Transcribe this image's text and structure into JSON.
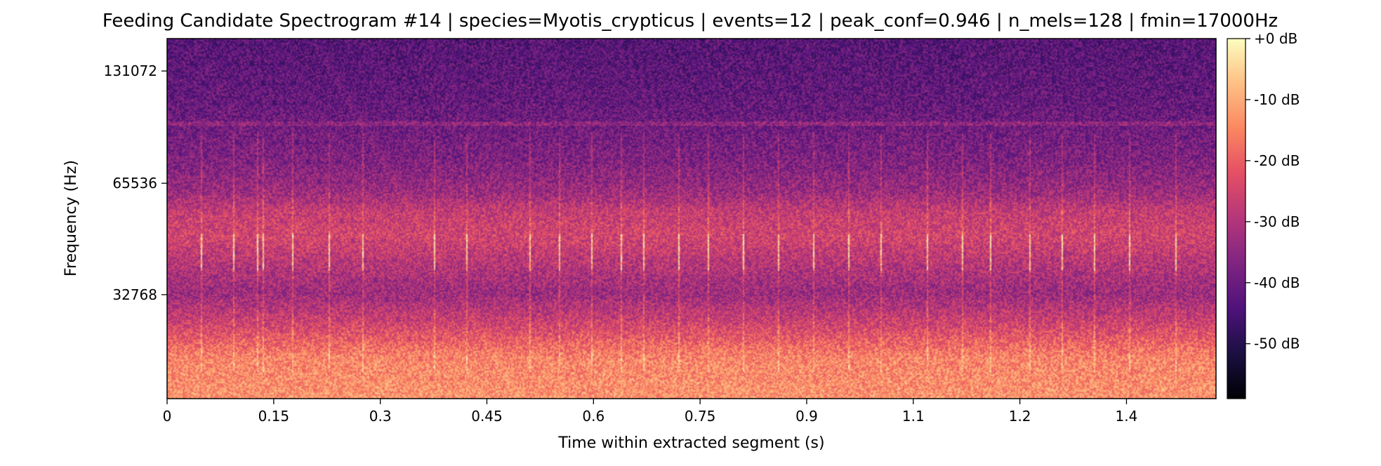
{
  "chart_data": {
    "type": "heatmap",
    "title": "Feeding Candidate Spectrogram #14 | species=Myotis_crypticus | events=12 | peak_conf=0.946 | n_mels=128 | fmin=17000Hz",
    "xlabel": "Time within extracted segment (s)",
    "ylabel": "Frequency (Hz)",
    "xlim": [
      0,
      1.476
    ],
    "y_scale": "mel",
    "ylim": [
      17000,
      160000
    ],
    "x_ticks": [
      {
        "value": 0,
        "label": "0"
      },
      {
        "value": 0.15,
        "label": "0.15"
      },
      {
        "value": 0.3,
        "label": "0.3"
      },
      {
        "value": 0.45,
        "label": "0.45"
      },
      {
        "value": 0.6,
        "label": "0.6"
      },
      {
        "value": 0.75,
        "label": "0.75"
      },
      {
        "value": 0.9,
        "label": "0.9"
      },
      {
        "value": 1.05,
        "label": "1.1"
      },
      {
        "value": 1.2,
        "label": "1.2"
      },
      {
        "value": 1.35,
        "label": "1.4"
      }
    ],
    "y_ticks": [
      {
        "value": 32768,
        "label": "32768"
      },
      {
        "value": 65536,
        "label": "65536"
      },
      {
        "value": 131072,
        "label": "131072"
      }
    ],
    "colormap": "magma",
    "colorbar": {
      "range": [
        -59,
        0
      ],
      "ticks": [
        {
          "value": 0,
          "label": "+0 dB"
        },
        {
          "value": -10,
          "label": "-10 dB"
        },
        {
          "value": -20,
          "label": "-20 dB"
        },
        {
          "value": -30,
          "label": "-30 dB"
        },
        {
          "value": -40,
          "label": "-40 dB"
        },
        {
          "value": -50,
          "label": "-50 dB"
        }
      ]
    },
    "approximate_energy_profile_db": [
      {
        "freq_hz": 17000,
        "db": -13
      },
      {
        "freq_hz": 22000,
        "db": -15
      },
      {
        "freq_hz": 27000,
        "db": -25
      },
      {
        "freq_hz": 33000,
        "db": -33
      },
      {
        "freq_hz": 40000,
        "db": -29
      },
      {
        "freq_hz": 47000,
        "db": -25
      },
      {
        "freq_hz": 55000,
        "db": -27
      },
      {
        "freq_hz": 62000,
        "db": -33
      },
      {
        "freq_hz": 75000,
        "db": -37
      },
      {
        "freq_hz": 90000,
        "db": -39
      },
      {
        "freq_hz": 110000,
        "db": -41
      },
      {
        "freq_hz": 160000,
        "db": -43
      }
    ],
    "approximate_click_times_s": [
      0.047,
      0.093,
      0.127,
      0.135,
      0.177,
      0.228,
      0.275,
      0.375,
      0.422,
      0.51,
      0.552,
      0.597,
      0.64,
      0.67,
      0.72,
      0.762,
      0.812,
      0.86,
      0.91,
      0.96,
      1.005,
      1.07,
      1.12,
      1.16,
      1.215,
      1.26,
      1.305,
      1.355,
      1.42
    ]
  }
}
